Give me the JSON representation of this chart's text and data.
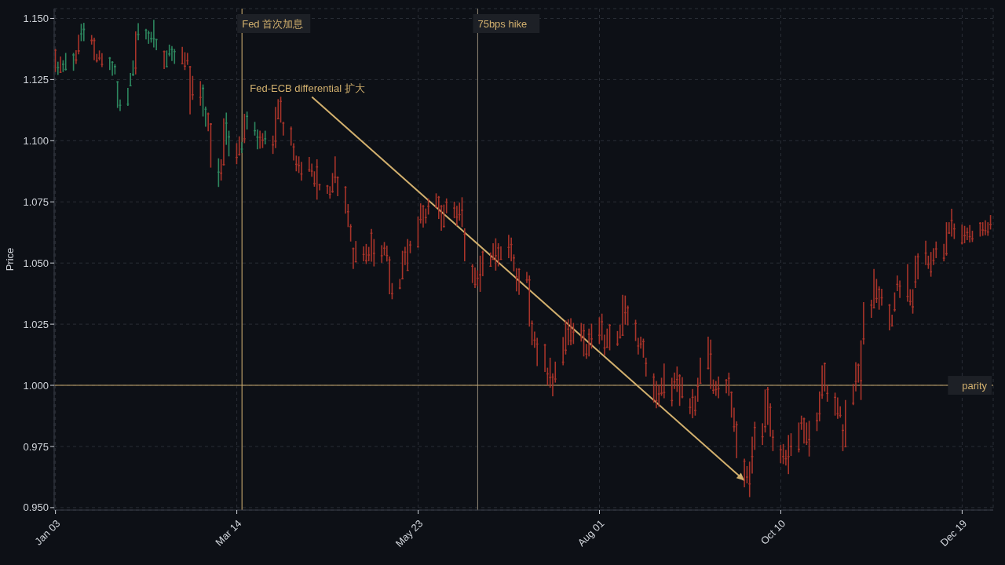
{
  "chart_data": {
    "type": "candlestick",
    "ylabel": "Price",
    "x": [
      "--01-03",
      "--01-04",
      "--01-05",
      "--01-06",
      "--01-07",
      "--01-10",
      "--01-11",
      "--01-12",
      "--01-13",
      "--01-14",
      "--01-17",
      "--01-18",
      "--01-19",
      "--01-20",
      "--01-21",
      "--01-24",
      "--01-25",
      "--01-26",
      "--01-27",
      "--01-28",
      "--01-31",
      "--02-01",
      "--02-02",
      "--02-03",
      "--02-04",
      "--02-07",
      "--02-08",
      "--02-09",
      "--02-10",
      "--02-11",
      "--02-14",
      "--02-15",
      "--02-16",
      "--02-17",
      "--02-18",
      "--02-21",
      "--02-22",
      "--02-23",
      "--02-24",
      "--02-25",
      "--02-28",
      "--03-01",
      "--03-02",
      "--03-03",
      "--03-04",
      "--03-07",
      "--03-08",
      "--03-09",
      "--03-10",
      "--03-11",
      "--03-14",
      "--03-15",
      "--03-16",
      "--03-17",
      "--03-18",
      "--03-21",
      "--03-22",
      "--03-23",
      "--03-24",
      "--03-25",
      "--03-28",
      "--03-29",
      "--03-30",
      "--03-31",
      "--04-01",
      "--04-04",
      "--04-05",
      "--04-06",
      "--04-07",
      "--04-08",
      "--04-11",
      "--04-12",
      "--04-13",
      "--04-14",
      "--04-15",
      "--04-18",
      "--04-19",
      "--04-20",
      "--04-21",
      "--04-22",
      "--04-25",
      "--04-26",
      "--04-27",
      "--04-28",
      "--04-29",
      "--05-02",
      "--05-03",
      "--05-04",
      "--05-05",
      "--05-06",
      "--05-09",
      "--05-10",
      "--05-11",
      "--05-12",
      "--05-13",
      "--05-16",
      "--05-17",
      "--05-18",
      "--05-19",
      "--05-20",
      "--05-23",
      "--05-24",
      "--05-25",
      "--05-26",
      "--05-27",
      "--05-30",
      "--05-31",
      "--06-01",
      "--06-02",
      "--06-03",
      "--06-06",
      "--06-07",
      "--06-08",
      "--06-09",
      "--06-10",
      "--06-13",
      "--06-14",
      "--06-15",
      "--06-16",
      "--06-17",
      "--06-20",
      "--06-21",
      "--06-22",
      "--06-23",
      "--06-24",
      "--06-27",
      "--06-28",
      "--06-29",
      "--06-30",
      "--07-01",
      "--07-04",
      "--07-05",
      "--07-06",
      "--07-07",
      "--07-08",
      "--07-11",
      "--07-12",
      "--07-13",
      "--07-14",
      "--07-15",
      "--07-18",
      "--07-19",
      "--07-20",
      "--07-21",
      "--07-22",
      "--07-25",
      "--07-26",
      "--07-27",
      "--07-28",
      "--07-29",
      "--08-01",
      "--08-02",
      "--08-03",
      "--08-04",
      "--08-05",
      "--08-08",
      "--08-09",
      "--08-10",
      "--08-11",
      "--08-12",
      "--08-15",
      "--08-16",
      "--08-17",
      "--08-18",
      "--08-19",
      "--08-22",
      "--08-23",
      "--08-24",
      "--08-25",
      "--08-26",
      "--08-29",
      "--08-30",
      "--08-31",
      "--09-01",
      "--09-02",
      "--09-05",
      "--09-06",
      "--09-07",
      "--09-08",
      "--09-09",
      "--09-12",
      "--09-13",
      "--09-14",
      "--09-15",
      "--09-16",
      "--09-19",
      "--09-20",
      "--09-21",
      "--09-22",
      "--09-23",
      "--09-26",
      "--09-27",
      "--09-28",
      "--09-29",
      "--09-30",
      "--10-03",
      "--10-04",
      "--10-05",
      "--10-06",
      "--10-07",
      "--10-10",
      "--10-11",
      "--10-12",
      "--10-13",
      "--10-14",
      "--10-17",
      "--10-18",
      "--10-19",
      "--10-20",
      "--10-21",
      "--10-24",
      "--10-25",
      "--10-26",
      "--10-27",
      "--10-28",
      "--10-31",
      "--11-01",
      "--11-02",
      "--11-03",
      "--11-04",
      "--11-07",
      "--11-08",
      "--11-09",
      "--11-10",
      "--11-11",
      "--11-14",
      "--11-15",
      "--11-16",
      "--11-17",
      "--11-18",
      "--11-21",
      "--11-22",
      "--11-23",
      "--11-24",
      "--11-25",
      "--11-28",
      "--11-29",
      "--11-30",
      "--12-01",
      "--12-02",
      "--12-05",
      "--12-06",
      "--12-07",
      "--12-08",
      "--12-09",
      "--12-12",
      "--12-13",
      "--12-14",
      "--12-15",
      "--12-16",
      "--12-19",
      "--12-20",
      "--12-21",
      "--12-22",
      "--12-23",
      "--12-26",
      "--12-27",
      "--12-28",
      "--12-29",
      "--12-30"
    ],
    "ohlc": [
      [
        1.1372,
        1.1375,
        1.1281,
        1.1372
      ],
      [
        1.1301,
        1.1323,
        1.1269,
        1.1301
      ],
      [
        1.1282,
        1.1344,
        1.1277,
        1.1282
      ],
      [
        1.131,
        1.1329,
        1.1281,
        1.1315
      ],
      [
        1.1294,
        1.1359,
        1.1287,
        1.1294
      ],
      [
        1.1353,
        1.1359,
        1.1286,
        1.1353
      ],
      [
        1.1333,
        1.137,
        1.1314,
        1.1327
      ],
      [
        1.137,
        1.1433,
        1.1353,
        1.1364
      ],
      [
        1.1439,
        1.1478,
        1.1407,
        1.1439
      ],
      [
        1.1452,
        1.1482,
        1.1407,
        1.1458
      ],
      [
        1.1413,
        1.1432,
        1.1393,
        1.1407
      ],
      [
        1.1413,
        1.1421,
        1.1329,
        1.1407
      ],
      [
        1.1329,
        1.1355,
        1.132,
        1.1329
      ],
      [
        1.134,
        1.1369,
        1.1328,
        1.134
      ],
      [
        1.1314,
        1.1358,
        1.1301,
        1.1314
      ],
      [
        1.134,
        1.1342,
        1.1289,
        1.134
      ],
      [
        1.1323,
        1.1325,
        1.1266,
        1.1323
      ],
      [
        1.13,
        1.1313,
        1.1271,
        1.1306
      ],
      [
        1.1238,
        1.1243,
        1.1134,
        1.1243
      ],
      [
        1.1147,
        1.1169,
        1.1121,
        1.1147
      ],
      [
        1.1152,
        1.1216,
        1.1142,
        1.1152
      ],
      [
        1.1227,
        1.1277,
        1.1222,
        1.1227
      ],
      [
        1.1269,
        1.1328,
        1.1264,
        1.1274
      ],
      [
        1.1299,
        1.1447,
        1.1271,
        1.1299
      ],
      [
        1.1432,
        1.1481,
        1.1411,
        1.1437
      ],
      [
        1.1454,
        1.1457,
        1.1414,
        1.1454
      ],
      [
        1.1438,
        1.145,
        1.1396,
        1.1443
      ],
      [
        1.1419,
        1.1445,
        1.1401,
        1.1419
      ],
      [
        1.1419,
        1.1494,
        1.1381,
        1.1419
      ],
      [
        1.1411,
        1.1416,
        1.137,
        1.1416
      ],
      [
        1.1367,
        1.1368,
        1.1293,
        1.1362
      ],
      [
        1.1305,
        1.1369,
        1.1302,
        1.1305
      ],
      [
        1.1352,
        1.1393,
        1.1345,
        1.1357
      ],
      [
        1.1371,
        1.1387,
        1.1326,
        1.1376
      ],
      [
        1.1362,
        1.1375,
        1.1314,
        1.1367
      ],
      [
        1.1317,
        1.1384,
        1.1313,
        1.1317
      ],
      [
        1.1307,
        1.1362,
        1.1289,
        1.1307
      ],
      [
        1.1329,
        1.1359,
        1.131,
        1.1329
      ],
      [
        1.1304,
        1.1306,
        1.1108,
        1.1304
      ],
      [
        1.119,
        1.1265,
        1.1167,
        1.119
      ],
      [
        1.1179,
        1.1244,
        1.1143,
        1.1179
      ],
      [
        1.1211,
        1.123,
        1.1099,
        1.1217
      ],
      [
        1.1131,
        1.114,
        1.1057,
        1.1131
      ],
      [
        1.1112,
        1.1115,
        1.1039,
        1.1112
      ],
      [
        1.1071,
        1.1072,
        1.089,
        1.1065
      ],
      [
        1.0874,
        1.0928,
        1.0811,
        1.0874
      ],
      [
        1.087,
        1.0924,
        1.0837,
        1.0865
      ],
      [
        1.0905,
        1.1092,
        1.0898,
        1.09
      ],
      [
        1.1074,
        1.1115,
        1.0983,
        1.1074
      ],
      [
        1.1013,
        1.1041,
        1.0936,
        1.1018
      ],
      [
        1.0934,
        1.099,
        1.0904,
        1.0934
      ],
      [
        1.0946,
        1.1018,
        1.0939,
        1.0946
      ],
      [
        1.0968,
        1.0995,
        1.095,
        1.0968
      ],
      [
        1.101,
        1.111,
        1.099,
        1.101
      ],
      [
        1.1097,
        1.1119,
        1.1046,
        1.1102
      ],
      [
        1.1043,
        1.1077,
        1.1021,
        1.1043
      ],
      [
        1.1017,
        1.1046,
        1.0965,
        1.1017
      ],
      [
        1.1016,
        1.1041,
        1.0967,
        1.1016
      ],
      [
        1.1005,
        1.1031,
        1.097,
        1.1005
      ],
      [
        1.101,
        1.1041,
        1.0985,
        1.101
      ],
      [
        1.0985,
        1.1021,
        1.0946,
        1.0985
      ],
      [
        1.1,
        1.1138,
        1.097,
        1.1
      ],
      [
        1.1092,
        1.117,
        1.1089,
        1.1092
      ],
      [
        1.1163,
        1.118,
        1.1074,
        1.1163
      ],
      [
        1.1074,
        1.1077,
        1.1021,
        1.1074
      ],
      [
        1.1051,
        1.1058,
        1.098,
        1.1051
      ],
      [
        1.0977,
        1.099,
        1.0919,
        1.0977
      ],
      [
        1.0906,
        1.0939,
        1.0875,
        1.0906
      ],
      [
        1.0901,
        1.0936,
        1.0868,
        1.0901
      ],
      [
        1.0866,
        1.0914,
        1.0837,
        1.0866
      ],
      [
        1.0883,
        1.0934,
        1.0873,
        1.0883
      ],
      [
        1.0878,
        1.0906,
        1.0853,
        1.0878
      ],
      [
        1.0827,
        1.0875,
        1.0812,
        1.0827
      ],
      [
        1.0895,
        1.0924,
        1.0759,
        1.0895
      ],
      [
        1.0822,
        1.0824,
        1.0797,
        1.0822
      ],
      [
        1.0817,
        1.0819,
        1.0783,
        1.0817
      ],
      [
        1.0783,
        1.0814,
        1.0763,
        1.0783
      ],
      [
        1.0794,
        1.0868,
        1.0787,
        1.0794
      ],
      [
        1.0853,
        1.0936,
        1.0827,
        1.0853
      ],
      [
        1.0851,
        1.0854,
        1.0773,
        1.0851
      ],
      [
        1.0812,
        1.0814,
        1.0702,
        1.0812
      ],
      [
        1.0712,
        1.0741,
        1.0647,
        1.0712
      ],
      [
        1.0651,
        1.0659,
        1.0588,
        1.0651
      ],
      [
        1.0561,
        1.0563,
        1.0476,
        1.0561
      ],
      [
        1.0507,
        1.059,
        1.0505,
        1.0507
      ],
      [
        1.0537,
        1.0568,
        1.0507,
        1.0537
      ],
      [
        1.0512,
        1.0578,
        1.0496,
        1.0512
      ],
      [
        1.0535,
        1.0566,
        1.0507,
        1.0535
      ],
      [
        1.0624,
        1.0639,
        1.0505,
        1.0624
      ],
      [
        1.0542,
        1.0598,
        1.0486,
        1.0542
      ],
      [
        1.0532,
        1.0573,
        1.0501,
        1.0532
      ],
      [
        1.0563,
        1.0586,
        1.0531,
        1.0563
      ],
      [
        1.0533,
        1.0571,
        1.0506,
        1.0533
      ],
      [
        1.0515,
        1.0527,
        1.0372,
        1.0515
      ],
      [
        1.0377,
        1.0418,
        1.0352,
        1.0377
      ],
      [
        1.04,
        1.0435,
        1.0393,
        1.04
      ],
      [
        1.0438,
        1.055,
        1.0433,
        1.0438
      ],
      [
        1.0547,
        1.0566,
        1.0492,
        1.0547
      ],
      [
        1.0472,
        1.0598,
        1.0469,
        1.0472
      ],
      [
        1.0576,
        1.0591,
        1.054,
        1.0576
      ],
      [
        1.0568,
        1.069,
        1.0566,
        1.0568
      ],
      [
        1.068,
        1.0744,
        1.0662,
        1.068
      ],
      [
        1.0734,
        1.0737,
        1.0645,
        1.0734
      ],
      [
        1.0688,
        1.0723,
        1.0662,
        1.0688
      ],
      [
        1.0734,
        1.0764,
        1.0698,
        1.0734
      ],
      [
        1.0731,
        1.0785,
        1.0729,
        1.0731
      ],
      [
        1.0771,
        1.0774,
        1.068,
        1.0771
      ],
      [
        1.0734,
        1.0737,
        1.0632,
        1.0734
      ],
      [
        1.0652,
        1.0739,
        1.0645,
        1.0652
      ],
      [
        1.0751,
        1.0764,
        1.0703,
        1.0751
      ],
      [
        1.0727,
        1.0751,
        1.0683,
        1.0727
      ],
      [
        1.069,
        1.0734,
        1.0652,
        1.069
      ],
      [
        1.07,
        1.0747,
        1.0673,
        1.07
      ],
      [
        1.0718,
        1.0769,
        1.0647,
        1.0718
      ],
      [
        1.062,
        1.0642,
        1.0507,
        1.062
      ],
      [
        1.0489,
        1.0496,
        1.0418,
        1.0489
      ],
      [
        1.0415,
        1.0482,
        1.0398,
        1.0415
      ],
      [
        1.044,
        1.047,
        1.0405,
        1.044
      ],
      [
        1.0454,
        1.053,
        1.0382,
        1.0454
      ],
      [
        1.0547,
        1.055,
        1.0446,
        1.0547
      ],
      [
        1.0489,
        1.0543,
        1.0486,
        1.0489
      ],
      [
        1.0517,
        1.0581,
        1.0513,
        1.0517
      ],
      [
        1.0532,
        1.0601,
        1.0469,
        1.0532
      ],
      [
        1.0564,
        1.0581,
        1.0486,
        1.0564
      ],
      [
        1.0517,
        1.0568,
        1.0515,
        1.0517
      ],
      [
        1.0566,
        1.0615,
        1.052,
        1.0566
      ],
      [
        1.0578,
        1.0604,
        1.0507,
        1.0578
      ],
      [
        1.0523,
        1.0535,
        1.0466,
        1.0523
      ],
      [
        1.0446,
        1.0479,
        1.0384,
        1.0446
      ],
      [
        1.0476,
        1.0479,
        1.037,
        1.0476
      ],
      [
        1.0433,
        1.0464,
        1.0418,
        1.0433
      ],
      [
        1.0433,
        1.0449,
        1.024,
        1.0433
      ],
      [
        1.0255,
        1.0265,
        1.0164,
        1.0255
      ],
      [
        1.0187,
        1.022,
        1.0153,
        1.0187
      ],
      [
        1.0171,
        1.0194,
        1.0079,
        1.0171
      ],
      [
        1.0167,
        1.0169,
        1.0055,
        1.0167
      ],
      [
        1.0049,
        1.0072,
        1.0,
        1.0049
      ],
      [
        1.0034,
        1.0113,
        0.999,
        1.0034
      ],
      [
        1.0036,
        1.0049,
        0.9955,
        1.0036
      ],
      [
        1.0028,
        1.0097,
        1.0011,
        1.0028
      ],
      [
        1.0097,
        1.0197,
        1.0082,
        1.0097
      ],
      [
        1.0146,
        1.0265,
        1.0126,
        1.0146
      ],
      [
        1.0232,
        1.027,
        1.0164,
        1.0232
      ],
      [
        1.0184,
        1.0274,
        1.0164,
        1.0184
      ],
      [
        1.022,
        1.0255,
        1.0169,
        1.022
      ],
      [
        1.0201,
        1.0255,
        1.0179,
        1.0201
      ],
      [
        1.0225,
        1.025,
        1.0118,
        1.0225
      ],
      [
        1.013,
        1.0169,
        1.0108,
        1.013
      ],
      [
        1.0211,
        1.0232,
        1.0118,
        1.0211
      ],
      [
        1.0192,
        1.0252,
        1.015,
        1.0192
      ],
      [
        1.0207,
        1.0278,
        1.0169,
        1.0207
      ],
      [
        1.0262,
        1.0293,
        1.0184,
        1.0262
      ],
      [
        1.0155,
        1.0207,
        1.0123,
        1.0155
      ],
      [
        1.0158,
        1.0232,
        1.0153,
        1.0158
      ],
      [
        1.0248,
        1.025,
        1.0143,
        1.0248
      ],
      [
        1.0171,
        1.0222,
        1.0161,
        1.0171
      ],
      [
        1.0199,
        1.0248,
        1.0191,
        1.0199
      ],
      [
        1.0207,
        1.037,
        1.0204,
        1.0207
      ],
      [
        1.0299,
        1.0367,
        1.0248,
        1.0299
      ],
      [
        1.0319,
        1.0326,
        1.0245,
        1.0319
      ],
      [
        1.0255,
        1.0268,
        1.0181,
        1.0255
      ],
      [
        1.0163,
        1.0194,
        1.0126,
        1.0163
      ],
      [
        1.0171,
        1.0199,
        1.015,
        1.0171
      ],
      [
        1.0181,
        1.0191,
        1.0113,
        1.0181
      ],
      [
        1.0092,
        1.0113,
        1.0036,
        1.0092
      ],
      [
        1.0036,
        1.0049,
        0.9929,
        1.0036
      ],
      [
        0.994,
        1.0018,
        0.9906,
        0.994
      ],
      [
        0.9967,
        1.0001,
        0.9912,
        0.9967
      ],
      [
        0.997,
        1.0031,
        0.9957,
        0.997
      ],
      [
        0.9973,
        1.0089,
        0.9947,
        0.9973
      ],
      [
        0.994,
        1.0031,
        0.9914,
        0.994
      ],
      [
        1.0016,
        1.0052,
        0.9985,
        1.0016
      ],
      [
        1.0026,
        1.0077,
        0.9973,
        1.0026
      ],
      [
        1.0041,
        1.0045,
        0.9916,
        1.0041
      ],
      [
        0.9955,
        1.0034,
        0.9947,
        0.9955
      ],
      [
        0.9912,
        0.9947,
        0.9882,
        0.9912
      ],
      [
        0.9953,
        0.9985,
        0.9865,
        0.9953
      ],
      [
        0.9899,
        0.9957,
        0.9876,
        0.9899
      ],
      [
        0.9998,
        1.0031,
        0.9933,
        0.9998
      ],
      [
        1.0011,
        1.0113,
        1.0006,
        1.0011
      ],
      [
        1.0072,
        1.0199,
        1.0065,
        1.0072
      ],
      [
        1.013,
        1.0187,
        0.9985,
        1.013
      ],
      [
        0.9982,
        1.0024,
        0.9965,
        0.9982
      ],
      [
        0.9985,
        1.0018,
        0.9957,
        0.9985
      ],
      [
        0.9988,
        1.0036,
        0.9947,
        0.9988
      ],
      [
        1.0023,
        1.0026,
        0.9967,
        1.0023
      ],
      [
        1.0031,
        1.0052,
        0.9957,
        1.0031
      ],
      [
        0.9973,
        0.9975,
        0.9868,
        0.9973
      ],
      [
        0.9833,
        0.9909,
        0.981,
        0.9833
      ],
      [
        0.9841,
        0.9853,
        0.9702,
        0.9841
      ],
      [
        0.9692,
        0.97,
        0.9583,
        0.9692
      ],
      [
        0.9627,
        0.967,
        0.9599,
        0.9627
      ],
      [
        0.9599,
        0.9688,
        0.9543,
        0.9599
      ],
      [
        0.9711,
        0.979,
        0.9639,
        0.9711
      ],
      [
        0.983,
        0.9851,
        0.9736,
        0.983
      ],
      [
        0.9792,
        0.9845,
        0.9756,
        0.9792
      ],
      [
        0.9833,
        0.9983,
        0.9807,
        0.9833
      ],
      [
        0.9985,
        0.9994,
        0.9838,
        0.9985
      ],
      [
        0.9912,
        0.9926,
        0.979,
        0.9912
      ],
      [
        0.979,
        0.9818,
        0.9731,
        0.979
      ],
      [
        0.9739,
        0.9756,
        0.9682,
        0.9739
      ],
      [
        0.9711,
        0.976,
        0.9678,
        0.9711
      ],
      [
        0.9702,
        0.9736,
        0.9672,
        0.9702
      ],
      [
        0.9711,
        0.9797,
        0.9637,
        0.9711
      ],
      [
        0.9753,
        0.9804,
        0.9711,
        0.9753
      ],
      [
        0.9741,
        0.9848,
        0.9726,
        0.9741
      ],
      [
        0.9848,
        0.9876,
        0.9818,
        0.9848
      ],
      [
        0.9865,
        0.9868,
        0.9762,
        0.9865
      ],
      [
        0.977,
        0.9848,
        0.9756,
        0.977
      ],
      [
        0.978,
        0.9855,
        0.9709,
        0.978
      ],
      [
        0.9858,
        0.9889,
        0.9813,
        0.9858
      ],
      [
        0.9886,
        0.9975,
        0.9853,
        0.9886
      ],
      [
        0.9963,
        1.0082,
        0.9945,
        0.9963
      ],
      [
        1.0091,
        1.0093,
        0.9975,
        1.0091
      ],
      [
        0.9969,
        1.0001,
        0.9933,
        0.9969
      ],
      [
        0.9953,
        0.997,
        0.9876,
        0.9953
      ],
      [
        0.9886,
        0.995,
        0.9863,
        0.9886
      ],
      [
        0.9879,
        0.9914,
        0.9868,
        0.9879
      ],
      [
        0.9818,
        0.9841,
        0.9731,
        0.9818
      ],
      [
        0.9751,
        0.994,
        0.9749,
        0.9751
      ],
      [
        0.9929,
        1.0006,
        0.9919,
        0.9929
      ],
      [
        1.0018,
        1.0095,
        0.9975,
        1.0018
      ],
      [
        1.0085,
        1.0089,
        1.0011,
        1.0085
      ],
      [
        1.0021,
        1.0184,
        0.994,
        1.0021
      ],
      [
        1.0192,
        1.034,
        1.0167,
        1.0192
      ],
      [
        1.033,
        1.035,
        1.0276,
        1.033
      ],
      [
        1.0319,
        1.0476,
        1.0316,
        1.0319
      ],
      [
        1.0357,
        1.0435,
        1.0337,
        1.0357
      ],
      [
        1.0395,
        1.0405,
        1.0309,
        1.0395
      ],
      [
        1.036,
        1.0395,
        1.0326,
        1.036
      ],
      [
        1.033,
        1.0332,
        1.0225,
        1.033
      ],
      [
        1.0245,
        1.0289,
        1.0243,
        1.0245
      ],
      [
        1.0311,
        1.038,
        1.0301,
        1.0311
      ],
      [
        1.0415,
        1.0449,
        1.0385,
        1.0415
      ],
      [
        1.0408,
        1.0428,
        1.0357,
        1.0408
      ],
      [
        1.0366,
        1.0496,
        1.0342,
        1.0366
      ],
      [
        1.0345,
        1.0393,
        1.0326,
        1.0345
      ],
      [
        1.0323,
        1.0393,
        1.0293,
        1.0323
      ],
      [
        1.0425,
        1.053,
        1.0398,
        1.0425
      ],
      [
        1.0528,
        1.054,
        1.0433,
        1.0528
      ],
      [
        1.0543,
        1.0591,
        1.0492,
        1.0543
      ],
      [
        1.0496,
        1.053,
        1.0476,
        1.0496
      ],
      [
        1.0466,
        1.0545,
        1.0444,
        1.0466
      ],
      [
        1.0513,
        1.0561,
        1.0492,
        1.0513
      ],
      [
        1.056,
        1.0588,
        1.052,
        1.056
      ],
      [
        1.0522,
        1.0578,
        1.0507,
        1.0522
      ],
      [
        1.054,
        1.0667,
        1.053,
        1.054
      ],
      [
        1.0625,
        1.0667,
        1.0619,
        1.0625
      ],
      [
        1.0676,
        1.0722,
        1.0608,
        1.0676
      ],
      [
        1.0642,
        1.0662,
        1.0598,
        1.0642
      ],
      [
        1.0584,
        1.0657,
        1.0576,
        1.0584
      ],
      [
        1.0614,
        1.0652,
        1.0581,
        1.0614
      ],
      [
        1.0627,
        1.0645,
        1.0594,
        1.0627
      ],
      [
        1.061,
        1.0655,
        1.0584,
        1.061
      ],
      [
        1.0601,
        1.0632,
        1.0586,
        1.0601
      ],
      [
        1.0665,
        1.0667,
        1.0608,
        1.0665
      ],
      [
        1.0637,
        1.0667,
        1.0611,
        1.0637
      ],
      [
        1.0635,
        1.0675,
        1.0614,
        1.0635
      ],
      [
        1.0629,
        1.0667,
        1.0611,
        1.0629
      ],
      [
        1.0659,
        1.0696,
        1.0637,
        1.0659
      ]
    ],
    "colors": [
      "#a8342a",
      "#2d875f",
      "#a8342a",
      "#2d875f",
      "#2d875f",
      "#2d875f",
      "#a8342a",
      "#a8342a",
      "#2d875f",
      "#2d875f",
      "#a8342a",
      "#a8342a",
      "#a8342a",
      "#a8342a",
      "#a8342a",
      "#2d875f",
      "#2d875f",
      "#2d875f",
      "#2d875f",
      "#2d875f",
      "#2d875f",
      "#2d875f",
      "#2d875f",
      "#a8342a",
      "#2d875f",
      "#2d875f",
      "#2d875f",
      "#2d875f",
      "#2d875f",
      "#2d875f",
      "#a8342a",
      "#2d875f",
      "#2d875f",
      "#2d875f",
      "#2d875f",
      "#a8342a",
      "#a8342a",
      "#a8342a",
      "#a8342a",
      "#a8342a",
      "#a8342a",
      "#2d875f",
      "#2d875f",
      "#a8342a",
      "#a8342a",
      "#2d875f",
      "#a8342a",
      "#a8342a",
      "#2d875f",
      "#2d875f",
      "#a8342a",
      "#a8342a",
      "#2d875f",
      "#a8342a",
      "#2d875f",
      "#2d875f",
      "#2d875f",
      "#a8342a",
      "#a8342a",
      "#2d875f",
      "#a8342a",
      "#a8342a",
      "#a8342a",
      "#a8342a",
      "#a8342a",
      "#a8342a",
      "#a8342a",
      "#a8342a",
      "#a8342a",
      "#a8342a",
      "#a8342a",
      "#a8342a",
      "#a8342a",
      "#a8342a",
      "#a8342a",
      "#a8342a",
      "#a8342a",
      "#a8342a",
      "#a8342a",
      "#a8342a",
      "#a8342a",
      "#a8342a",
      "#a8342a",
      "#a8342a",
      "#a8342a",
      "#a8342a",
      "#a8342a",
      "#a8342a",
      "#a8342a",
      "#a8342a",
      "#a8342a",
      "#a8342a",
      "#a8342a",
      "#a8342a",
      "#a8342a",
      "#a8342a",
      "#a8342a",
      "#a8342a",
      "#a8342a",
      "#a8342a",
      "#a8342a",
      "#a8342a",
      "#a8342a",
      "#a8342a",
      "#a8342a",
      "#a8342a",
      "#a8342a",
      "#a8342a",
      "#a8342a",
      "#a8342a",
      "#a8342a",
      "#a8342a",
      "#a8342a",
      "#a8342a",
      "#a8342a",
      "#a8342a",
      "#a8342a",
      "#a8342a",
      "#a8342a",
      "#a8342a",
      "#a8342a",
      "#a8342a",
      "#a8342a",
      "#a8342a",
      "#a8342a",
      "#a8342a",
      "#a8342a",
      "#a8342a",
      "#a8342a",
      "#a8342a",
      "#a8342a",
      "#a8342a",
      "#a8342a",
      "#a8342a",
      "#a8342a",
      "#a8342a",
      "#a8342a",
      "#a8342a",
      "#a8342a",
      "#a8342a",
      "#a8342a",
      "#a8342a",
      "#a8342a",
      "#a8342a",
      "#a8342a",
      "#a8342a",
      "#a8342a",
      "#a8342a",
      "#a8342a",
      "#a8342a",
      "#a8342a",
      "#a8342a",
      "#a8342a",
      "#a8342a",
      "#a8342a",
      "#a8342a",
      "#a8342a",
      "#a8342a",
      "#a8342a",
      "#a8342a",
      "#a8342a",
      "#a8342a",
      "#a8342a",
      "#a8342a",
      "#a8342a",
      "#a8342a",
      "#a8342a",
      "#a8342a",
      "#a8342a",
      "#a8342a",
      "#a8342a",
      "#a8342a",
      "#a8342a",
      "#a8342a",
      "#a8342a",
      "#a8342a",
      "#a8342a",
      "#a8342a",
      "#a8342a",
      "#a8342a",
      "#a8342a",
      "#a8342a",
      "#a8342a",
      "#a8342a",
      "#a8342a",
      "#a8342a",
      "#a8342a",
      "#a8342a",
      "#a8342a",
      "#a8342a",
      "#a8342a",
      "#a8342a",
      "#a8342a",
      "#a8342a",
      "#a8342a",
      "#a8342a",
      "#a8342a",
      "#a8342a",
      "#a8342a",
      "#a8342a",
      "#a8342a",
      "#a8342a",
      "#a8342a",
      "#a8342a",
      "#a8342a",
      "#a8342a",
      "#a8342a",
      "#a8342a",
      "#a8342a",
      "#a8342a",
      "#a8342a",
      "#a8342a",
      "#a8342a",
      "#a8342a",
      "#a8342a",
      "#a8342a",
      "#a8342a",
      "#a8342a",
      "#a8342a",
      "#a8342a",
      "#a8342a",
      "#a8342a",
      "#a8342a",
      "#a8342a",
      "#a8342a",
      "#a8342a",
      "#a8342a",
      "#a8342a",
      "#a8342a",
      "#a8342a",
      "#a8342a",
      "#a8342a",
      "#a8342a",
      "#a8342a",
      "#a8342a",
      "#a8342a",
      "#a8342a",
      "#a8342a",
      "#a8342a",
      "#a8342a",
      "#a8342a",
      "#a8342a",
      "#a8342a",
      "#a8342a",
      "#a8342a",
      "#a8342a",
      "#a8342a",
      "#a8342a",
      "#a8342a",
      "#a8342a",
      "#a8342a",
      "#a8342a",
      "#a8342a",
      "#a8342a",
      "#a8342a",
      "#a8342a",
      "#a8342a",
      "#a8342a",
      "#a8342a",
      "#a8342a"
    ],
    "xlim": [
      "--01-02T12:00",
      "--12-31"
    ],
    "xticks": [
      {
        "value": "--01-03",
        "label": "Jan 03"
      },
      {
        "value": "--03-14",
        "label": "Mar 14"
      },
      {
        "value": "--05-23",
        "label": "May 23"
      },
      {
        "value": "--08-01",
        "label": "Aug 01"
      },
      {
        "value": "--10-10",
        "label": "Oct 10"
      },
      {
        "value": "--12-19",
        "label": "Dec 19"
      }
    ],
    "ylim": [
      0.949,
      1.154
    ],
    "yticks": [
      {
        "value": 0.95,
        "label": "0.950"
      },
      {
        "value": 0.975,
        "label": "0.975"
      },
      {
        "value": 1.0,
        "label": "1.000"
      },
      {
        "value": 1.025,
        "label": "1.025"
      },
      {
        "value": 1.05,
        "label": "1.050"
      },
      {
        "value": 1.075,
        "label": "1.075"
      },
      {
        "value": 1.1,
        "label": "1.100"
      },
      {
        "value": 1.125,
        "label": "1.125"
      },
      {
        "value": 1.15,
        "label": "1.150"
      }
    ],
    "grid": true,
    "ref_lines": [
      {
        "axis": "x",
        "value": "--03-16",
        "label": "Fed 首次加息",
        "color": "#c9a96e"
      },
      {
        "axis": "x",
        "value": "--06-15",
        "label": "75bps hike",
        "color": "#8a8170"
      },
      {
        "axis": "y",
        "value": 1.0,
        "label": "parity",
        "color": "#c9a96e"
      }
    ],
    "annotations": [
      {
        "text": "Fed-ECB differential 扩大",
        "x": "--09-26",
        "y": 0.961
      }
    ]
  }
}
